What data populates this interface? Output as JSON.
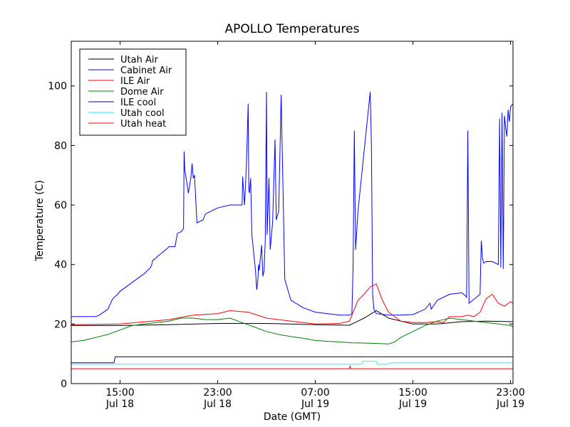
{
  "chart_data": {
    "type": "line",
    "title": "APOLLO Temperatures",
    "xlabel": "Date (GMT)",
    "ylabel": "Temperature (C)",
    "x_unit": "hours (Jul 18 00:00 = 0)",
    "xlim": [
      11.0,
      47.2
    ],
    "ylim": [
      0,
      115
    ],
    "yticks": [
      0,
      20,
      40,
      60,
      80,
      100
    ],
    "xticks": [
      {
        "x": 15,
        "line1": "15:00",
        "line2": "Jul 18"
      },
      {
        "x": 23,
        "line1": "23:00",
        "line2": "Jul 18"
      },
      {
        "x": 31,
        "line1": "07:00",
        "line2": "Jul 19"
      },
      {
        "x": 39,
        "line1": "15:00",
        "line2": "Jul 19"
      },
      {
        "x": 47,
        "line1": "23:00",
        "line2": "Jul 19"
      }
    ],
    "grid": false,
    "legend_position": "top-left",
    "series": [
      {
        "name": "Utah Air",
        "color": "#000000",
        "x": [
          11.0,
          15.0,
          19.0,
          23.0,
          27.0,
          31.0,
          33.8,
          34.5,
          35.0,
          36.0,
          37.0,
          39.0,
          41.0,
          43.0,
          45.0,
          47.2
        ],
        "values": [
          19.5,
          19.5,
          19.8,
          20.2,
          20.2,
          19.8,
          19.6,
          21.0,
          22.0,
          24.5,
          22.0,
          20.0,
          20.0,
          20.8,
          21.0,
          20.8
        ]
      },
      {
        "name": "Cabinet Air",
        "color": "#0000ff",
        "x": [
          11.0,
          13.0,
          13.3,
          14.0,
          14.4,
          14.8,
          15.0,
          16.0,
          17.0,
          17.5,
          17.6,
          17.65,
          17.7,
          17.9,
          18.0,
          18.9,
          19.0,
          19.5,
          19.7,
          20.0,
          20.2,
          20.25,
          20.3,
          20.6,
          20.8,
          20.9,
          21.0,
          21.1,
          21.3,
          21.8,
          22.0,
          23.0,
          24.0,
          25.0,
          25.05,
          25.2,
          25.3,
          25.4,
          25.5,
          25.55,
          25.6,
          25.7,
          25.8,
          26.1,
          26.2,
          26.3,
          26.35,
          26.4,
          26.6,
          26.7,
          26.8,
          26.9,
          27.0,
          27.05,
          27.2,
          27.3,
          27.5,
          27.7,
          27.8,
          28.0,
          28.2,
          28.5,
          29.0,
          30.0,
          31.0,
          32.0,
          33.0,
          33.8,
          34.0,
          34.1,
          34.2,
          34.3,
          34.5,
          35.0,
          35.5,
          35.6,
          35.7,
          35.8,
          36.0,
          37.0,
          38.0,
          39.0,
          40.0,
          40.4,
          40.5,
          41.0,
          42.0,
          43.0,
          43.3,
          43.4,
          43.5,
          43.6,
          44.5,
          44.6,
          44.7,
          44.8,
          45.0,
          45.5,
          46.0,
          46.1,
          46.2,
          46.3,
          46.4,
          46.5,
          46.6,
          46.7,
          46.8,
          46.9,
          47.0,
          47.2
        ],
        "values": [
          22.5,
          22.5,
          23.0,
          25.0,
          28.5,
          30.0,
          31.0,
          34.0,
          37.0,
          39.0,
          40.0,
          41.0,
          41.5,
          42.0,
          42.5,
          45.5,
          46.0,
          46.0,
          50.5,
          51.0,
          52.0,
          78.0,
          72.0,
          64.0,
          69.0,
          74.0,
          69.0,
          70.0,
          54.0,
          55.0,
          57.0,
          59.0,
          60.0,
          60.0,
          69.5,
          60.0,
          68.0,
          79.5,
          94.0,
          65.0,
          64.0,
          69.0,
          50.0,
          38.0,
          31.5,
          35.0,
          40.0,
          38.0,
          46.5,
          36.0,
          38.0,
          48.0,
          98.0,
          50.0,
          69.0,
          45.0,
          54.0,
          82.0,
          55.0,
          58.0,
          97.0,
          35.0,
          28.0,
          25.5,
          24.0,
          23.5,
          23.0,
          23.0,
          23.5,
          40.0,
          85.0,
          45.0,
          58.0,
          78.0,
          98.0,
          80.0,
          30.0,
          25.0,
          23.5,
          23.0,
          23.0,
          23.2,
          25.0,
          27.0,
          25.0,
          28.0,
          30.0,
          30.5,
          29.5,
          29.0,
          85.0,
          27.0,
          30.0,
          48.0,
          42.0,
          40.5,
          41.0,
          41.0,
          40.0,
          89.0,
          39.0,
          91.0,
          38.5,
          90.0,
          86.0,
          83.0,
          92.0,
          88.0,
          93.0,
          94.0
        ]
      },
      {
        "name": "ILE Air",
        "color": "#ff0000",
        "x": [
          11.0,
          15.0,
          19.0,
          21.0,
          23.0,
          23.5,
          24.0,
          25.5,
          27.0,
          29.0,
          31.0,
          33.0,
          33.8,
          34.5,
          35.0,
          35.5,
          36.0,
          36.5,
          37.0,
          38.0,
          39.0,
          40.0,
          41.0,
          41.5,
          42.0,
          43.0,
          43.5,
          44.0,
          44.5,
          45.0,
          45.5,
          46.0,
          46.5,
          47.0,
          47.2
        ],
        "values": [
          19.8,
          20.0,
          21.5,
          23.0,
          23.5,
          24.0,
          24.5,
          24.0,
          22.0,
          21.0,
          20.0,
          20.2,
          21.0,
          28.0,
          30.0,
          32.5,
          33.5,
          28.0,
          24.0,
          21.0,
          20.5,
          20.5,
          20.8,
          20.5,
          22.5,
          22.5,
          23.0,
          22.5,
          24.0,
          28.5,
          30.0,
          27.0,
          26.0,
          27.5,
          27.0
        ]
      },
      {
        "name": "Dome Air",
        "color": "#008000",
        "x": [
          11.0,
          12.0,
          13.0,
          14.0,
          15.0,
          16.0,
          17.0,
          18.0,
          19.0,
          20.0,
          21.0,
          22.0,
          23.0,
          24.0,
          25.0,
          26.0,
          27.0,
          28.0,
          29.0,
          30.0,
          31.0,
          32.0,
          33.0,
          34.0,
          35.0,
          36.0,
          37.0,
          37.5,
          38.0,
          39.0,
          40.0,
          41.0,
          42.0,
          43.0,
          44.0,
          45.0,
          46.0,
          47.0,
          47.2
        ],
        "values": [
          14.0,
          14.5,
          15.5,
          16.5,
          18.0,
          19.5,
          20.0,
          20.5,
          21.0,
          22.0,
          22.0,
          21.5,
          21.5,
          22.0,
          20.5,
          19.0,
          17.5,
          16.5,
          15.8,
          15.2,
          14.5,
          14.2,
          14.0,
          13.7,
          13.6,
          13.5,
          13.3,
          14.0,
          15.5,
          17.5,
          19.5,
          21.0,
          22.0,
          21.5,
          21.0,
          20.5,
          20.0,
          19.5,
          19.0
        ]
      },
      {
        "name": "ILE cool",
        "color": "#000080",
        "x": [
          11.0,
          14.5,
          14.6,
          47.2
        ],
        "values": [
          7.0,
          7.0,
          9.0,
          9.0
        ]
      },
      {
        "name": "Utah cool",
        "color": "#00ffff",
        "x": [
          11.0,
          34.8,
          34.9,
          36.0,
          36.1,
          37.0,
          37.1,
          47.2
        ],
        "values": [
          6.5,
          6.5,
          7.5,
          7.5,
          6.5,
          6.5,
          7.0,
          7.0
        ]
      },
      {
        "name": "Utah heat",
        "color": "#ff0000",
        "x": [
          11.0,
          33.8,
          33.85,
          33.9,
          47.2
        ],
        "values": [
          5.0,
          5.0,
          6.0,
          5.0,
          5.0
        ]
      }
    ]
  }
}
